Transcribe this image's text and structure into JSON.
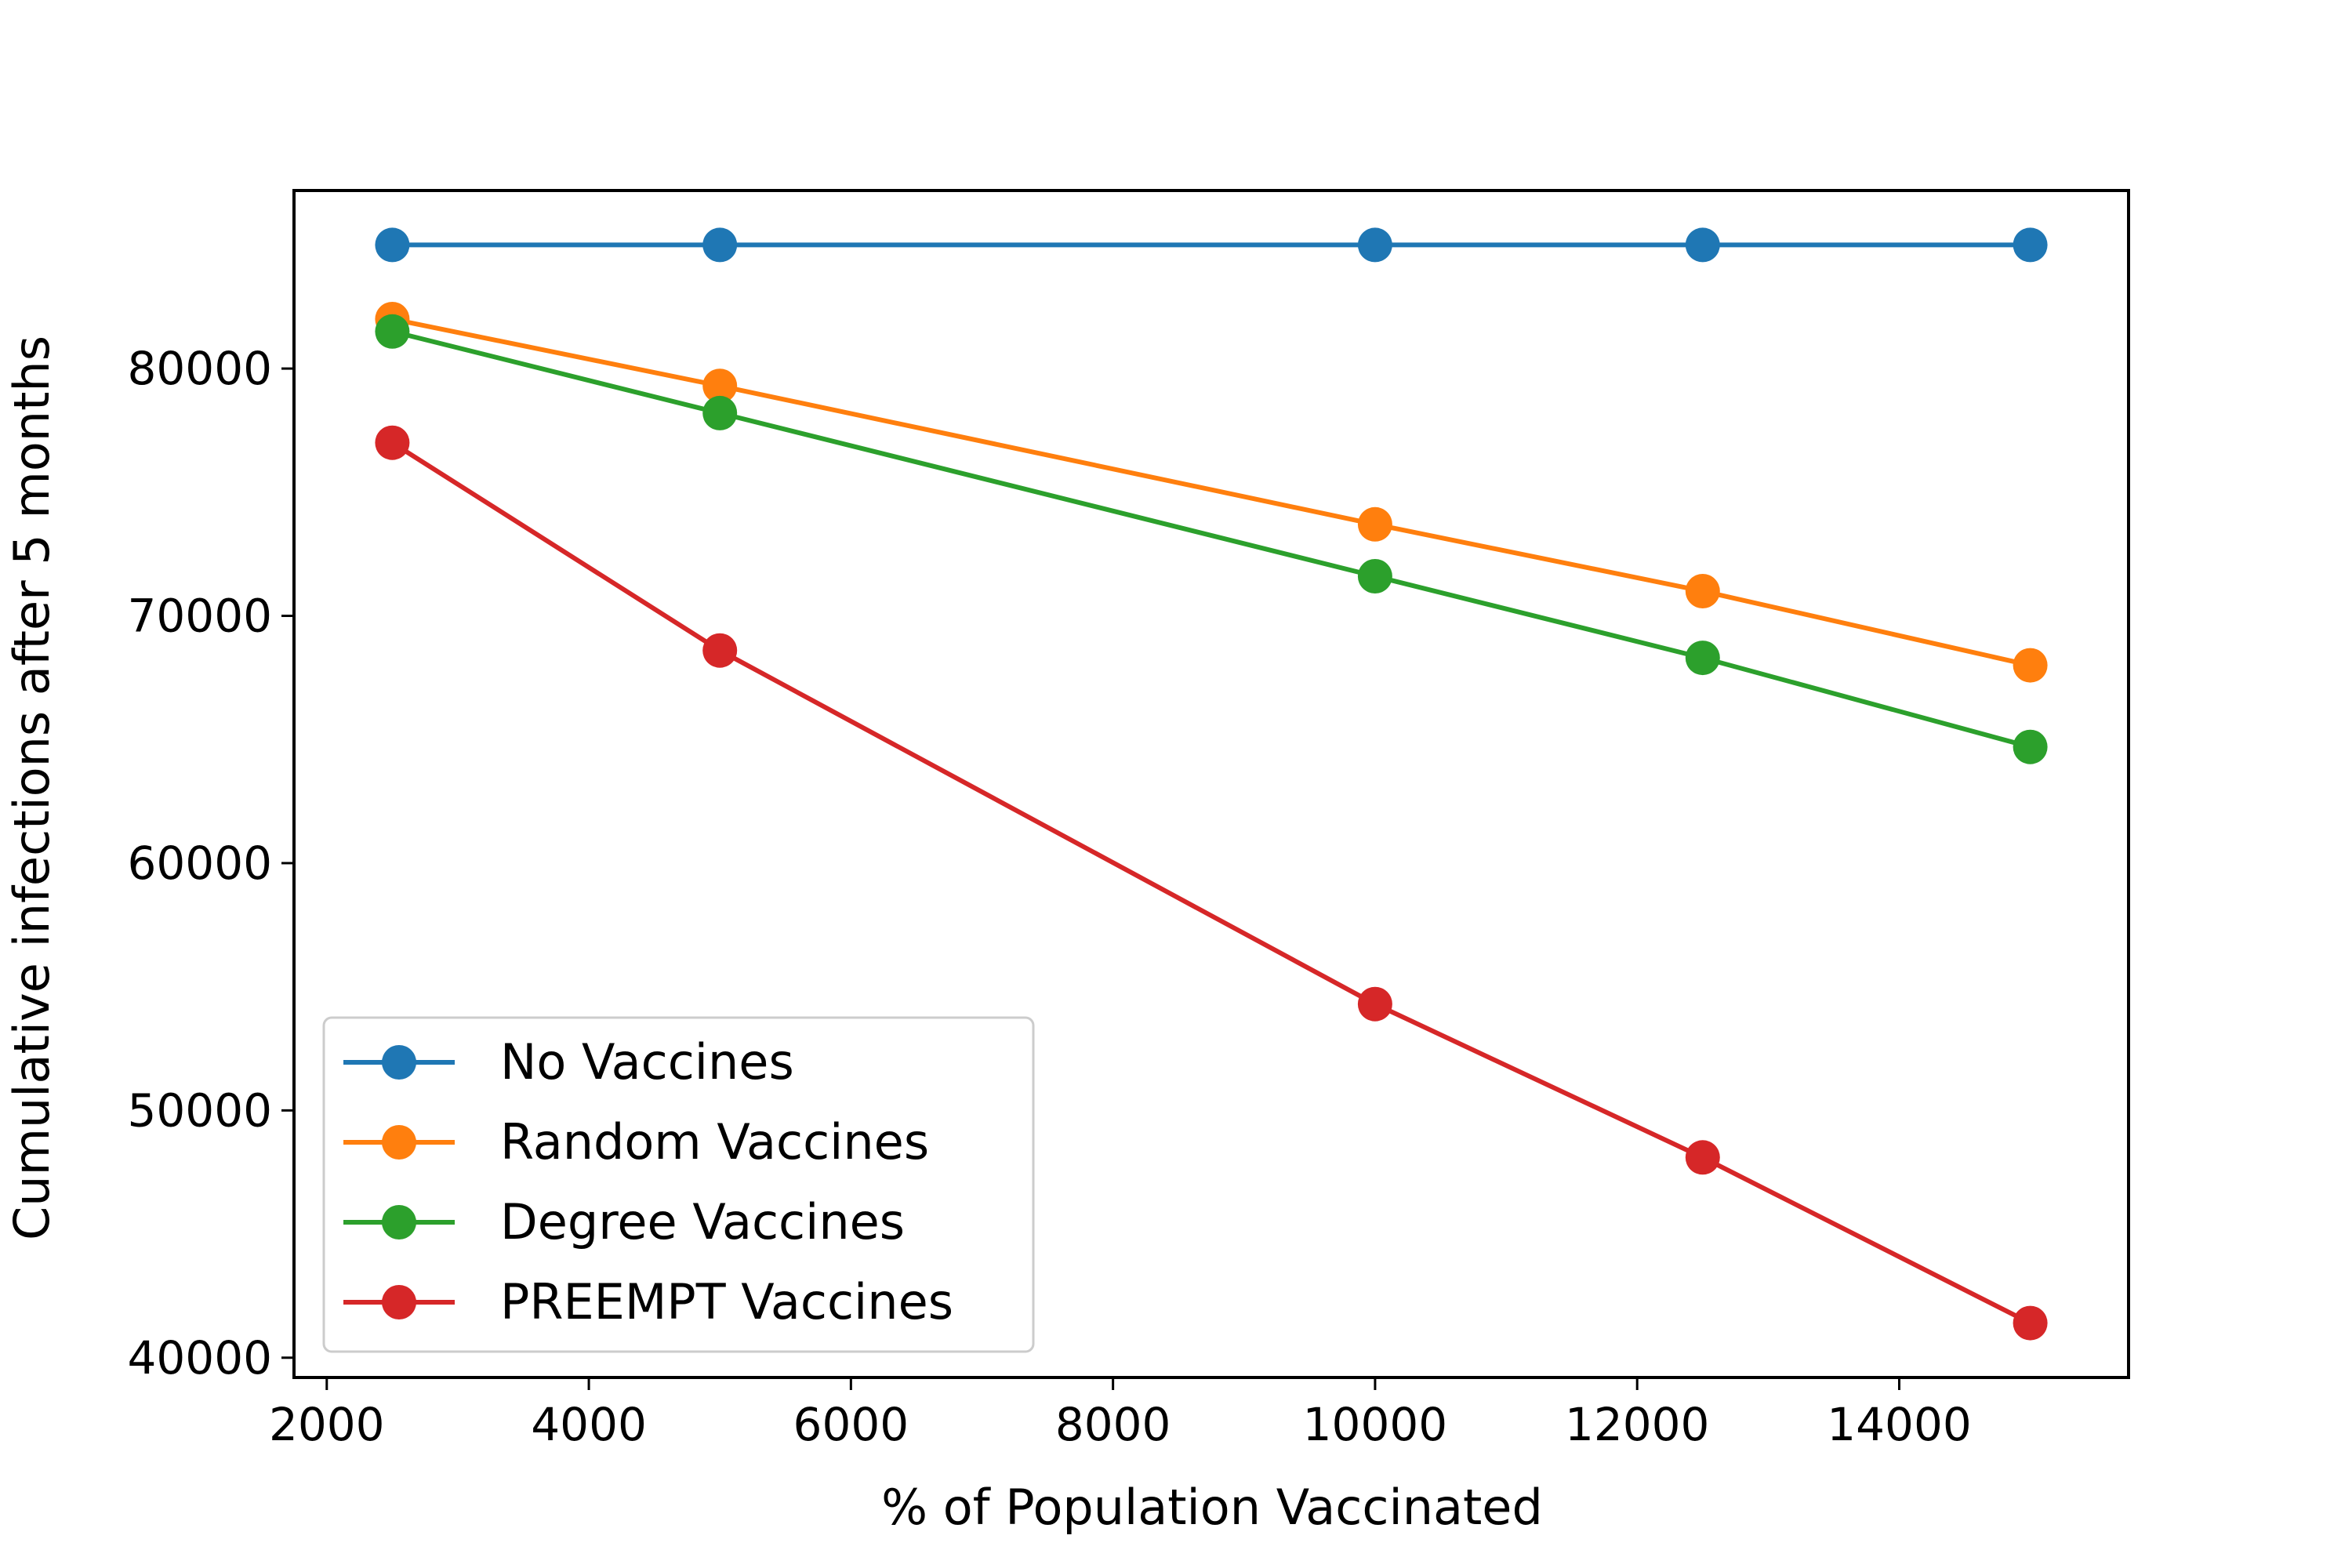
{
  "chart_data": {
    "type": "line",
    "title": "",
    "xlabel": "% of Population Vaccinated",
    "ylabel": "Cumulative infections after 5 months",
    "xlim": [
      1750,
      15750
    ],
    "ylim": [
      39200,
      87200
    ],
    "xticks": [
      2000,
      4000,
      6000,
      8000,
      10000,
      12000,
      14000
    ],
    "yticks": [
      40000,
      50000,
      60000,
      70000,
      80000
    ],
    "x": [
      2500,
      5000,
      10000,
      12500,
      15000
    ],
    "grid": false,
    "legend_position": "lower-left",
    "series": [
      {
        "name": "No Vaccines",
        "color": "#1f77b4",
        "values": [
          85000,
          85000,
          85000,
          85000,
          85000
        ]
      },
      {
        "name": "Random Vaccines",
        "color": "#ff7f0e",
        "values": [
          82000,
          79300,
          73700,
          71000,
          68000
        ]
      },
      {
        "name": "Degree Vaccines",
        "color": "#2ca02c",
        "values": [
          81500,
          78200,
          71600,
          68300,
          64700
        ]
      },
      {
        "name": "PREEMPT Vaccines",
        "color": "#d62728",
        "values": [
          77000,
          68600,
          54300,
          48100,
          41400
        ]
      }
    ]
  }
}
